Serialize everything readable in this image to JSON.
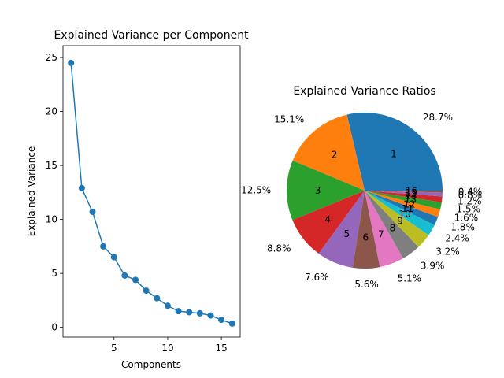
{
  "chart_data": [
    {
      "type": "line",
      "title": "Explained Variance per Component",
      "xlabel": "Components",
      "ylabel": "Explained Variance",
      "xlim": [
        0.25,
        16.75
      ],
      "ylim": [
        -0.9,
        26.1
      ],
      "xticks": [
        5,
        10,
        15
      ],
      "yticks": [
        0,
        5,
        10,
        15,
        20,
        25
      ],
      "grid": false,
      "x": [
        1,
        2,
        3,
        4,
        5,
        6,
        7,
        8,
        9,
        10,
        11,
        12,
        13,
        14,
        15,
        16
      ],
      "values": [
        24.5,
        12.9,
        10.7,
        7.5,
        6.5,
        4.8,
        4.4,
        3.4,
        2.7,
        2.0,
        1.5,
        1.4,
        1.3,
        1.1,
        0.7,
        0.35
      ],
      "color": "#1f77b4"
    },
    {
      "type": "pie",
      "title": "Explained Variance Ratios",
      "labels": [
        "1",
        "2",
        "3",
        "4",
        "5",
        "6",
        "7",
        "8",
        "9",
        "10",
        "11",
        "12",
        "13",
        "14",
        "15",
        "16"
      ],
      "values": [
        28.7,
        15.1,
        12.5,
        8.8,
        7.6,
        5.6,
        5.1,
        3.9,
        3.2,
        2.4,
        1.8,
        1.6,
        1.5,
        1.2,
        0.8,
        0.4
      ],
      "pct_labels": [
        "28.7%",
        "15.1%",
        "12.5%",
        "8.8%",
        "7.6%",
        "5.6%",
        "5.1%",
        "3.9%",
        "3.2%",
        "2.4%",
        "1.8%",
        "1.6%",
        "1.5%",
        "1.2%",
        "0.8%",
        "0.4%"
      ],
      "colors": [
        "#1f77b4",
        "#ff7f0e",
        "#2ca02c",
        "#d62728",
        "#9467bd",
        "#8c564b",
        "#e377c2",
        "#7f7f7f",
        "#bcbd22",
        "#17becf",
        "#1f77b4",
        "#ff7f0e",
        "#2ca02c",
        "#d62728",
        "#9467bd",
        "#8c564b"
      ]
    }
  ]
}
